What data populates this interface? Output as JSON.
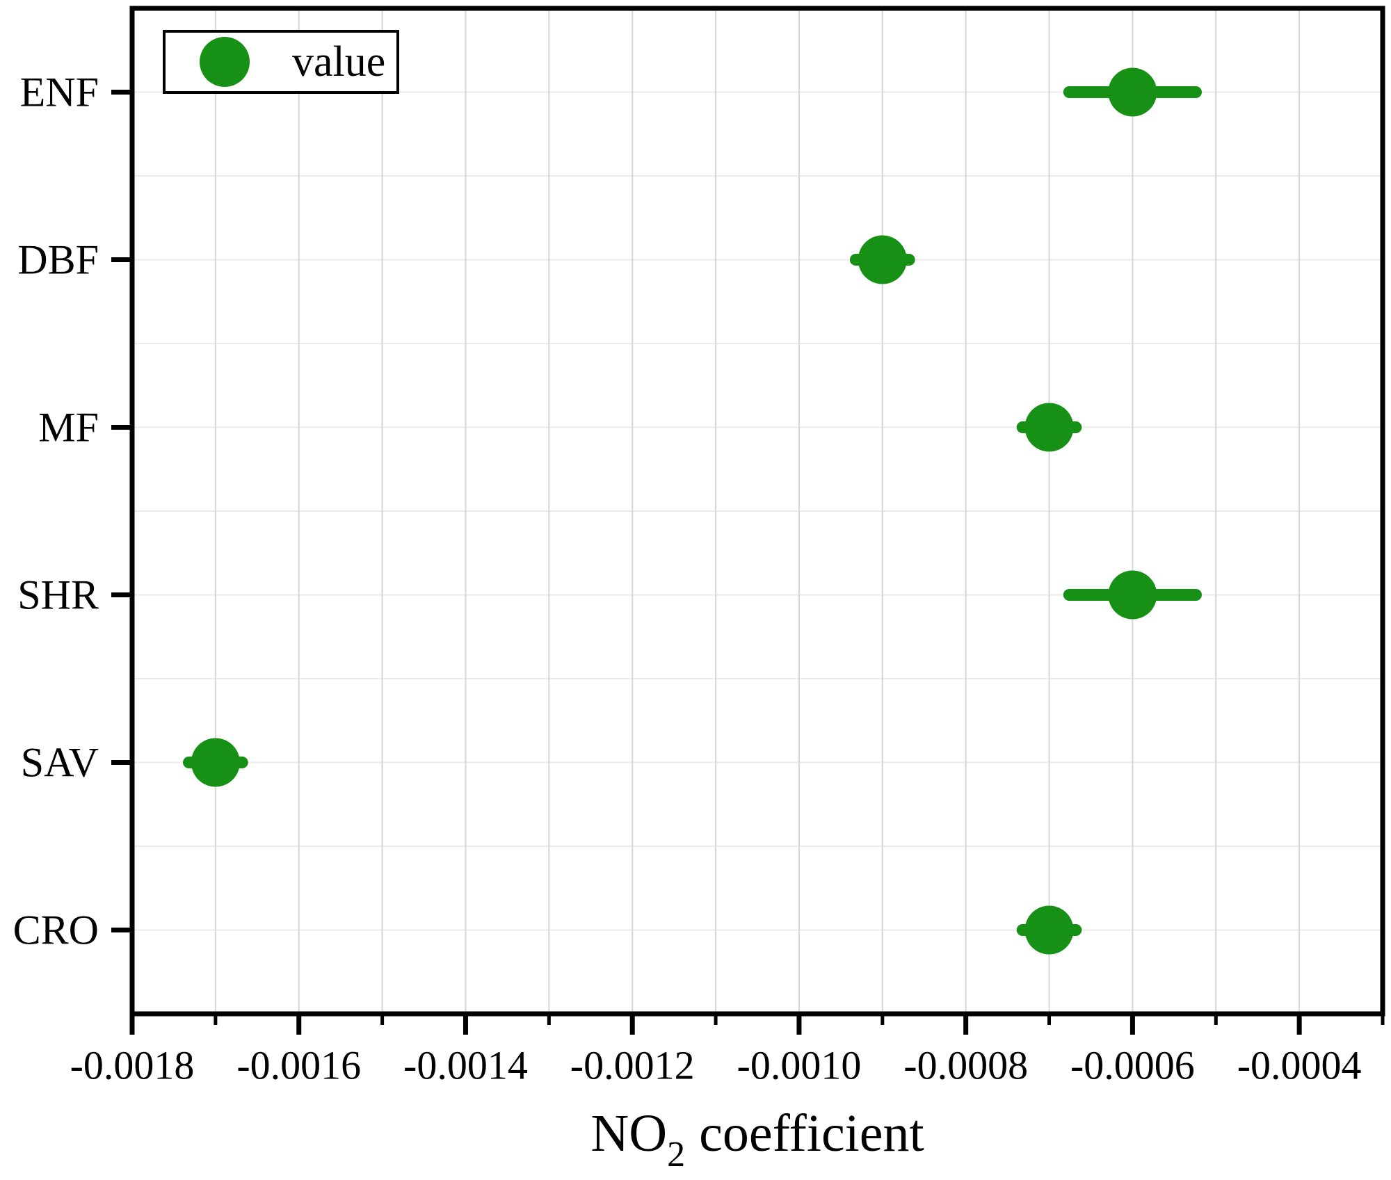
{
  "figure": {
    "background": "#ffffff"
  },
  "legend": {
    "label": "value",
    "position": "top-left"
  },
  "xaxis_title": {
    "main": "NO",
    "sub": "2",
    "rest": "coefficient"
  },
  "colors": {
    "marker_green": "#169116",
    "axis_black": "#000000",
    "grid_vertical": "#d6d6d6",
    "grid_horizontal": "#ebebeb",
    "plot_background": "#ffffff",
    "legend_background": "#ffffff"
  },
  "chart_data": {
    "type": "scatter",
    "subtype": "horizontal-dot-plot-with-x-error-bars",
    "title": "",
    "xlabel": "NO2 coefficient",
    "ylabel": "",
    "categories": [
      "ENF",
      "DBF",
      "MF",
      "SHR",
      "SAV",
      "CRO"
    ],
    "series": [
      {
        "name": "value",
        "values": [
          -0.0006,
          -0.0009,
          -0.0007,
          -0.0006,
          -0.0017,
          -0.0007
        ],
        "errors": [
          7.6e-05,
          3.2e-05,
          3.2e-05,
          7.6e-05,
          3.2e-05,
          3.2e-05
        ]
      }
    ],
    "xlim": [
      -0.0018,
      -0.0003
    ],
    "x_major_ticks": [
      -0.0018,
      -0.0016,
      -0.0014,
      -0.0012,
      -0.001,
      -0.0008,
      -0.0006,
      -0.0004
    ],
    "x_major_tick_labels": [
      "-0.0018",
      "-0.0016",
      "-0.0014",
      "-0.0012",
      "-0.0010",
      "-0.0008",
      "-0.0006",
      "-0.0004"
    ],
    "x_minor_ticks": [
      -0.0017,
      -0.0015,
      -0.0013,
      -0.0011,
      -0.0009,
      -0.0007,
      -0.0005,
      -0.0003
    ],
    "x_grid_step": 0.0001,
    "grid": true,
    "legend_position": "top-left"
  }
}
